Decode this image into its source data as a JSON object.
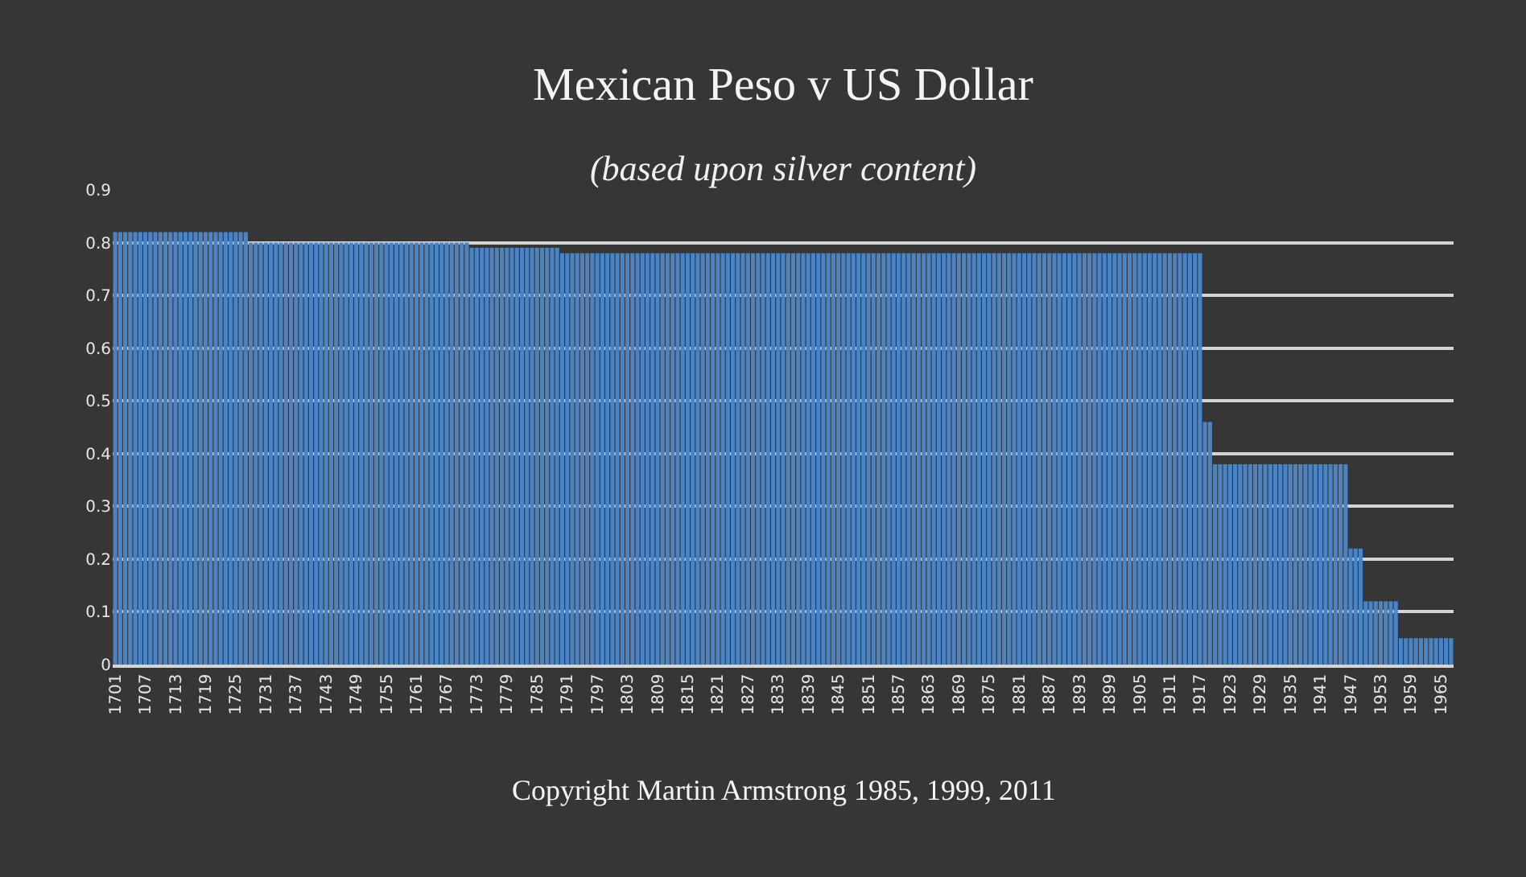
{
  "chart_data": {
    "type": "bar",
    "title": "Mexican Peso v US Dollar",
    "subtitle": "(based upon silver content)",
    "annotations": [
      "Copyright Martin Armstrong 1985, 1999, 2011"
    ],
    "x": [
      1701,
      1702,
      1703,
      1704,
      1705,
      1706,
      1707,
      1708,
      1709,
      1710,
      1711,
      1712,
      1713,
      1714,
      1715,
      1716,
      1717,
      1718,
      1719,
      1720,
      1721,
      1722,
      1723,
      1724,
      1725,
      1726,
      1727,
      1728,
      1729,
      1730,
      1731,
      1732,
      1733,
      1734,
      1735,
      1736,
      1737,
      1738,
      1739,
      1740,
      1741,
      1742,
      1743,
      1744,
      1745,
      1746,
      1747,
      1748,
      1749,
      1750,
      1751,
      1752,
      1753,
      1754,
      1755,
      1756,
      1757,
      1758,
      1759,
      1760,
      1761,
      1762,
      1763,
      1764,
      1765,
      1766,
      1767,
      1768,
      1769,
      1770,
      1771,
      1772,
      1773,
      1774,
      1775,
      1776,
      1777,
      1778,
      1779,
      1780,
      1781,
      1782,
      1783,
      1784,
      1785,
      1786,
      1787,
      1788,
      1789,
      1790,
      1791,
      1792,
      1793,
      1794,
      1795,
      1796,
      1797,
      1798,
      1799,
      1800,
      1801,
      1802,
      1803,
      1804,
      1805,
      1806,
      1807,
      1808,
      1809,
      1810,
      1811,
      1812,
      1813,
      1814,
      1815,
      1816,
      1817,
      1818,
      1819,
      1820,
      1821,
      1822,
      1823,
      1824,
      1825,
      1826,
      1827,
      1828,
      1829,
      1830,
      1831,
      1832,
      1833,
      1834,
      1835,
      1836,
      1837,
      1838,
      1839,
      1840,
      1841,
      1842,
      1843,
      1844,
      1845,
      1846,
      1847,
      1848,
      1849,
      1850,
      1851,
      1852,
      1853,
      1854,
      1855,
      1856,
      1857,
      1858,
      1859,
      1860,
      1861,
      1862,
      1863,
      1864,
      1865,
      1866,
      1867,
      1868,
      1869,
      1870,
      1871,
      1872,
      1873,
      1874,
      1875,
      1876,
      1877,
      1878,
      1879,
      1880,
      1881,
      1882,
      1883,
      1884,
      1885,
      1886,
      1887,
      1888,
      1889,
      1890,
      1891,
      1892,
      1893,
      1894,
      1895,
      1896,
      1897,
      1898,
      1899,
      1900,
      1901,
      1902,
      1903,
      1904,
      1905,
      1906,
      1907,
      1908,
      1909,
      1910,
      1911,
      1912,
      1913,
      1914,
      1915,
      1916,
      1917,
      1918,
      1919,
      1920,
      1921,
      1922,
      1923,
      1924,
      1925,
      1926,
      1927,
      1928,
      1929,
      1930,
      1931,
      1932,
      1933,
      1934,
      1935,
      1936,
      1937,
      1938,
      1939,
      1940,
      1941,
      1942,
      1943,
      1944,
      1945,
      1946,
      1947,
      1948,
      1949,
      1950,
      1951,
      1952,
      1953,
      1954,
      1955,
      1956,
      1957,
      1958,
      1959,
      1960,
      1961,
      1962,
      1963,
      1964,
      1965,
      1966,
      1967
    ],
    "values": [
      0.82,
      0.82,
      0.82,
      0.82,
      0.82,
      0.82,
      0.82,
      0.82,
      0.82,
      0.82,
      0.82,
      0.82,
      0.82,
      0.82,
      0.82,
      0.82,
      0.82,
      0.82,
      0.82,
      0.82,
      0.82,
      0.82,
      0.82,
      0.82,
      0.82,
      0.82,
      0.82,
      0.8,
      0.8,
      0.8,
      0.8,
      0.8,
      0.8,
      0.8,
      0.8,
      0.8,
      0.8,
      0.8,
      0.8,
      0.8,
      0.8,
      0.8,
      0.8,
      0.8,
      0.8,
      0.8,
      0.8,
      0.8,
      0.8,
      0.8,
      0.8,
      0.8,
      0.8,
      0.8,
      0.8,
      0.8,
      0.8,
      0.8,
      0.8,
      0.8,
      0.8,
      0.8,
      0.8,
      0.8,
      0.8,
      0.8,
      0.8,
      0.8,
      0.8,
      0.8,
      0.8,
      0.79,
      0.79,
      0.79,
      0.79,
      0.79,
      0.79,
      0.79,
      0.79,
      0.79,
      0.79,
      0.79,
      0.79,
      0.79,
      0.79,
      0.79,
      0.79,
      0.79,
      0.79,
      0.78,
      0.78,
      0.78,
      0.78,
      0.78,
      0.78,
      0.78,
      0.78,
      0.78,
      0.78,
      0.78,
      0.78,
      0.78,
      0.78,
      0.78,
      0.78,
      0.78,
      0.78,
      0.78,
      0.78,
      0.78,
      0.78,
      0.78,
      0.78,
      0.78,
      0.78,
      0.78,
      0.78,
      0.78,
      0.78,
      0.78,
      0.78,
      0.78,
      0.78,
      0.78,
      0.78,
      0.78,
      0.78,
      0.78,
      0.78,
      0.78,
      0.78,
      0.78,
      0.78,
      0.78,
      0.78,
      0.78,
      0.78,
      0.78,
      0.78,
      0.78,
      0.78,
      0.78,
      0.78,
      0.78,
      0.78,
      0.78,
      0.78,
      0.78,
      0.78,
      0.78,
      0.78,
      0.78,
      0.78,
      0.78,
      0.78,
      0.78,
      0.78,
      0.78,
      0.78,
      0.78,
      0.78,
      0.78,
      0.78,
      0.78,
      0.78,
      0.78,
      0.78,
      0.78,
      0.78,
      0.78,
      0.78,
      0.78,
      0.78,
      0.78,
      0.78,
      0.78,
      0.78,
      0.78,
      0.78,
      0.78,
      0.78,
      0.78,
      0.78,
      0.78,
      0.78,
      0.78,
      0.78,
      0.78,
      0.78,
      0.78,
      0.78,
      0.78,
      0.78,
      0.78,
      0.78,
      0.78,
      0.78,
      0.78,
      0.78,
      0.78,
      0.78,
      0.78,
      0.78,
      0.78,
      0.78,
      0.78,
      0.78,
      0.78,
      0.78,
      0.78,
      0.78,
      0.78,
      0.78,
      0.78,
      0.78,
      0.78,
      0.78,
      0.46,
      0.46,
      0.38,
      0.38,
      0.38,
      0.38,
      0.38,
      0.38,
      0.38,
      0.38,
      0.38,
      0.38,
      0.38,
      0.38,
      0.38,
      0.38,
      0.38,
      0.38,
      0.38,
      0.38,
      0.38,
      0.38,
      0.38,
      0.38,
      0.38,
      0.38,
      0.38,
      0.38,
      0.38,
      0.22,
      0.22,
      0.22,
      0.12,
      0.12,
      0.12,
      0.12,
      0.12,
      0.12,
      0.12,
      0.05,
      0.05,
      0.05,
      0.05,
      0.05,
      0.05,
      0.05,
      0.05,
      0.05,
      0.05,
      0.05
    ],
    "color": "#4a84c4",
    "xlim": [
      1700.5,
      1967.5
    ],
    "xticks": [
      1701,
      1707,
      1713,
      1719,
      1725,
      1731,
      1737,
      1743,
      1749,
      1755,
      1761,
      1767,
      1773,
      1779,
      1785,
      1791,
      1797,
      1803,
      1809,
      1815,
      1821,
      1827,
      1833,
      1839,
      1845,
      1851,
      1857,
      1863,
      1869,
      1875,
      1881,
      1887,
      1893,
      1899,
      1905,
      1911,
      1917,
      1923,
      1929,
      1935,
      1941,
      1947,
      1953,
      1959,
      1965
    ],
    "ylim": [
      0,
      0.9
    ],
    "yticks": [
      0,
      0.1,
      0.2,
      0.3,
      0.4,
      0.5,
      0.6,
      0.7,
      0.8,
      0.9
    ],
    "grid": "y"
  }
}
